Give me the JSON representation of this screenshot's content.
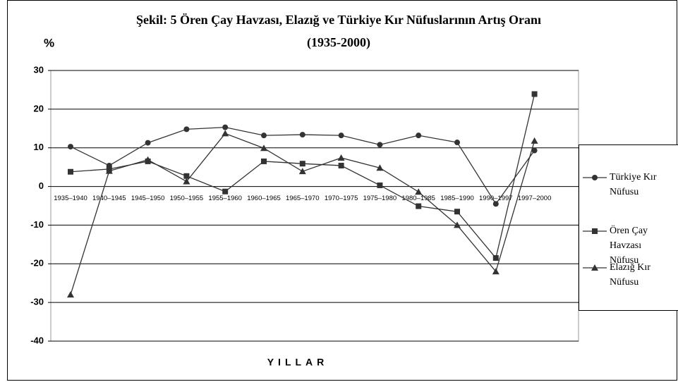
{
  "chart_data": {
    "type": "line",
    "title": [
      "Şekil: 5 Ören Çay Havzası, Elazığ ve Türkiye Kır Nüfuslarının Artış Oranı",
      "(1935-2000)"
    ],
    "y_label": "%",
    "x_label": "YILLAR",
    "categories": [
      "1935–1940",
      "1940–1945",
      "1945–1950",
      "1950–1955",
      "1955–1960",
      "1960–1965",
      "1965–1970",
      "1970–1975",
      "1975–1980",
      "1980–1985",
      "1985–1990",
      "1990–1997",
      "1997–2000"
    ],
    "series": [
      {
        "name": "Türkiye Kır Nüfusu",
        "color": "#333333",
        "marker": "circle",
        "values": [
          10.3,
          5.4,
          11.3,
          14.8,
          15.3,
          13.2,
          13.4,
          13.2,
          10.8,
          13.2,
          11.4,
          -4.5,
          9.3
        ]
      },
      {
        "name": "Ören Çay Havzası Nüfusu",
        "color": "#333333",
        "marker": "square",
        "values": [
          3.8,
          4.5,
          6.5,
          2.7,
          -1.3,
          6.5,
          5.9,
          5.4,
          0.3,
          -5.1,
          -6.5,
          -18.5,
          23.9
        ]
      },
      {
        "name": "Elazığ Kır Nüfusu",
        "color": "#333333",
        "marker": "triangle",
        "values": [
          -28,
          4.0,
          6.9,
          1.3,
          13.7,
          9.9,
          3.9,
          7.4,
          4.8,
          -1.4,
          -10,
          -22,
          11.8
        ]
      }
    ],
    "ylim": [
      -40,
      30
    ],
    "yticks": [
      -40,
      -30,
      -20,
      -10,
      0,
      10,
      20,
      30
    ],
    "grid": true,
    "legend": "right"
  }
}
